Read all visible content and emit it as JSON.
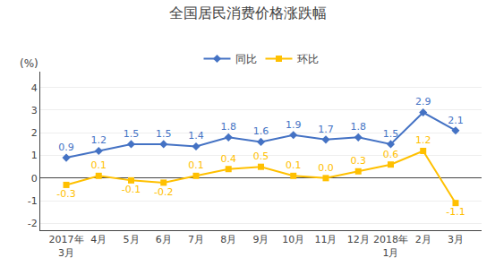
{
  "chart_data": {
    "type": "line",
    "title": "全国居民消费价格涨跌幅",
    "ylabel": "(%)",
    "categories": [
      "2017年\n3月",
      "4月",
      "5月",
      "6月",
      "7月",
      "8月",
      "9月",
      "10月",
      "11月",
      "12月",
      "2018年\n1月",
      "2月",
      "3月"
    ],
    "series": [
      {
        "name": "同比",
        "color": "#4472C4",
        "marker": "diamond",
        "values": [
          0.9,
          1.2,
          1.5,
          1.5,
          1.4,
          1.8,
          1.6,
          1.9,
          1.7,
          1.8,
          1.5,
          2.9,
          2.1
        ]
      },
      {
        "name": "环比",
        "color": "#FFC000",
        "marker": "square",
        "values": [
          -0.3,
          0.1,
          -0.1,
          -0.2,
          0.1,
          0.4,
          0.5,
          0.1,
          0.0,
          0.3,
          0.6,
          1.2,
          -1.1
        ],
        "value_labels": [
          "-0.3",
          "0.1",
          "-0.1",
          "-0.2",
          "0.1",
          "0.4",
          "0.5",
          "0.1",
          "0.0",
          "0.3",
          "0.6",
          "1.2",
          "-1.1"
        ]
      }
    ],
    "ylim": [
      -2.3,
      4.7
    ],
    "yticks": [
      -2,
      -1,
      0,
      1,
      2,
      3,
      4
    ],
    "grid": true,
    "legend": "top",
    "data_labels": true
  }
}
